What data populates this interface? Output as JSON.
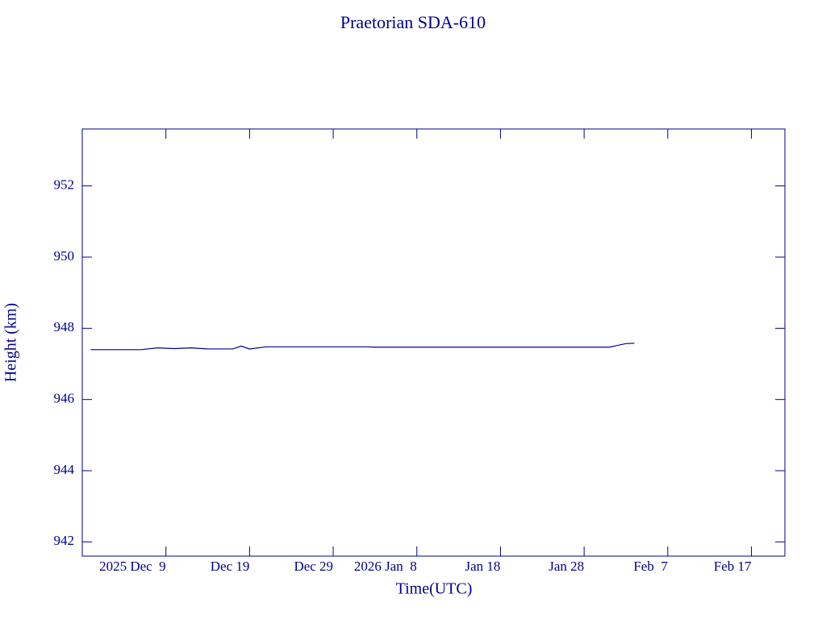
{
  "chart_data": {
    "type": "line",
    "title": "Praetorian SDA-610",
    "x_label": "Time(UTC)",
    "y_label": "Height (km)",
    "x": [
      "2025-11-30",
      "2025-12-06",
      "2025-12-08",
      "2025-12-10",
      "2025-12-12",
      "2025-12-14",
      "2025-12-17",
      "2025-12-18",
      "2025-12-19",
      "2025-12-21",
      "2026-01-02",
      "2026-01-03",
      "2026-01-31",
      "2026-02-02",
      "2026-02-03"
    ],
    "series": [
      {
        "color": "#00008b",
        "values": [
          947.4,
          947.4,
          947.45,
          947.43,
          947.45,
          947.42,
          947.42,
          947.5,
          947.42,
          947.48,
          947.48,
          947.47,
          947.47,
          947.57,
          947.58
        ]
      }
    ],
    "xlim": [
      "2025-11-29",
      "2026-02-21"
    ],
    "xticks": [
      {
        "value": "2025-12-09",
        "label": "2025 Dec  9"
      },
      {
        "value": "2025-12-19",
        "label": "Dec 19"
      },
      {
        "value": "2025-12-29",
        "label": "Dec 29"
      },
      {
        "value": "2026-01-08",
        "label": "2026 Jan  8"
      },
      {
        "value": "2026-01-18",
        "label": "Jan 18"
      },
      {
        "value": "2026-01-28",
        "label": "Jan 28"
      },
      {
        "value": "2026-02-07",
        "label": "Feb  7"
      },
      {
        "value": "2026-02-17",
        "label": "Feb 17"
      }
    ],
    "ylim": [
      941.6,
      953.6
    ],
    "yticks": [
      942,
      944,
      946,
      948,
      950,
      952
    ]
  }
}
